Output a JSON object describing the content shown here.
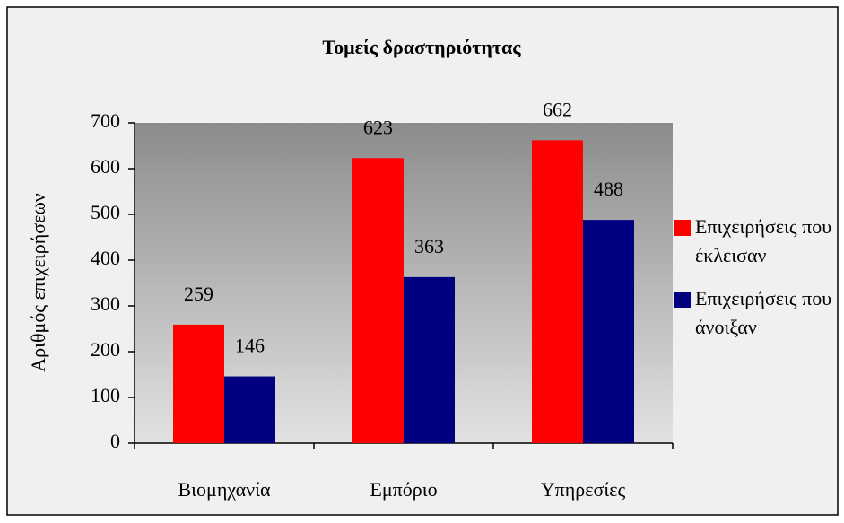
{
  "chart_data": {
    "type": "bar",
    "title": "Τομείς δραστηριότητας",
    "y_label": "Αριθμός επιχειρήσεων",
    "categories": [
      "Βιομηχανία",
      "Εμπόριο",
      "Υπηρεσίες"
    ],
    "series": [
      {
        "name": "Επιχειρήσεις που έκλεισαν",
        "color": "#ff0000",
        "values": [
          259,
          623,
          662
        ]
      },
      {
        "name": "Επιχειρήσεις που άνοιξαν",
        "color": "#000080",
        "values": [
          146,
          363,
          488
        ]
      }
    ],
    "ylim": [
      0,
      700
    ],
    "yticks": [
      0,
      100,
      200,
      300,
      400,
      500,
      600,
      700
    ],
    "grid": false,
    "legend": "right"
  }
}
